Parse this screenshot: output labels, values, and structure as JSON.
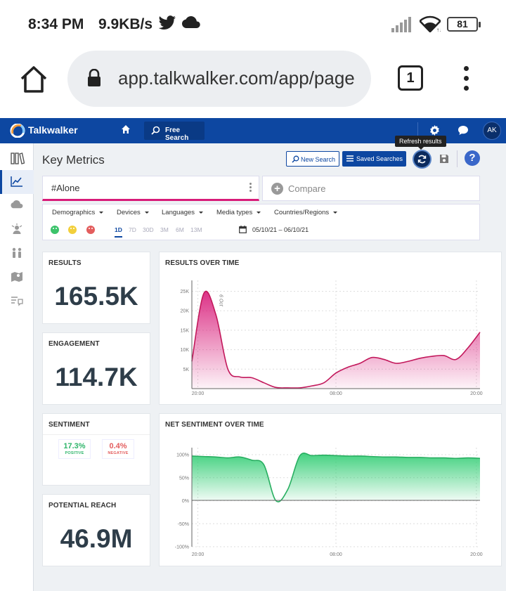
{
  "status_bar": {
    "time": "8:34 PM",
    "speed": "9.9KB/s",
    "battery": "81"
  },
  "browser": {
    "url": "app.talkwalker.com/app/page",
    "tab_count": "1"
  },
  "header": {
    "brand": "Talkwalker",
    "free_search_label": "Free Search",
    "avatar_initials": "AK"
  },
  "toolbar": {
    "page_title": "Key Metrics",
    "new_search_label": "New Search",
    "saved_searches_label": "Saved Searches",
    "refresh_tooltip": "Refresh results"
  },
  "query": {
    "text": "#Alone",
    "compare_placeholder": "Compare"
  },
  "filters": {
    "items": [
      "Demographics",
      "Devices",
      "Languages",
      "Media types",
      "Countries/Regions"
    ],
    "ranges": [
      "1D",
      "7D",
      "30D",
      "3M",
      "6M",
      "13M"
    ],
    "active_range": "1D",
    "date_range": "05/10/21 – 06/10/21",
    "sentiment_colors": {
      "positive": "#3cc36b",
      "neutral": "#f2cf3b",
      "negative": "#e35d5d"
    }
  },
  "cards": {
    "results": {
      "title": "RESULTS",
      "value": "165.5K"
    },
    "engagement": {
      "title": "ENGAGEMENT",
      "value": "114.7K"
    },
    "sentiment": {
      "title": "SENTIMENT",
      "positive_value": "17.3%",
      "positive_label": "POSITIVE",
      "negative_value": "0.4%",
      "negative_label": "NEGATIVE"
    },
    "reach": {
      "title": "POTENTIAL REACH",
      "value": "46.9M"
    },
    "results_over_time": {
      "title": "RESULTS OVER TIME"
    },
    "net_sentiment": {
      "title": "NET SENTIMENT OVER TIME"
    }
  },
  "chart_data": [
    {
      "type": "area",
      "title": "RESULTS OVER TIME",
      "color": "#d81b79",
      "x_ticks": [
        "20:00",
        "08:00",
        "20:00"
      ],
      "y_ticks": [
        "5K",
        "10K",
        "15K",
        "20K",
        "25K"
      ],
      "ylim": [
        0,
        26000
      ],
      "annotation": "6 Oct",
      "x": [
        0,
        1,
        2,
        3,
        4,
        5,
        6,
        7,
        8,
        9,
        10,
        11,
        12,
        13,
        14,
        15,
        16,
        17,
        18,
        19,
        20,
        21,
        22,
        23,
        24
      ],
      "values": [
        7000,
        24500,
        19000,
        5000,
        3000,
        2800,
        1500,
        300,
        200,
        200,
        700,
        1500,
        4000,
        5500,
        6500,
        8000,
        7500,
        6500,
        7000,
        7800,
        8300,
        8500,
        7500,
        10500,
        14500
      ]
    },
    {
      "type": "area",
      "title": "NET SENTIMENT OVER TIME",
      "color": "#2ecc71",
      "x_ticks": [
        "20:00",
        "08:00",
        "20:00"
      ],
      "y_ticks": [
        "100%",
        "50%",
        "0%",
        "-50%",
        "-100%"
      ],
      "ylim": [
        -100,
        100
      ],
      "x": [
        0,
        1,
        2,
        3,
        4,
        5,
        6,
        7,
        8,
        9,
        10,
        11,
        12,
        13,
        14,
        15,
        16,
        17,
        18,
        19,
        20,
        21,
        22,
        23,
        24
      ],
      "values": [
        97,
        96,
        95,
        93,
        95,
        88,
        78,
        0,
        25,
        98,
        98,
        99,
        98,
        97,
        97,
        96,
        95,
        95,
        94,
        94,
        93,
        93,
        92,
        93,
        92
      ]
    }
  ]
}
